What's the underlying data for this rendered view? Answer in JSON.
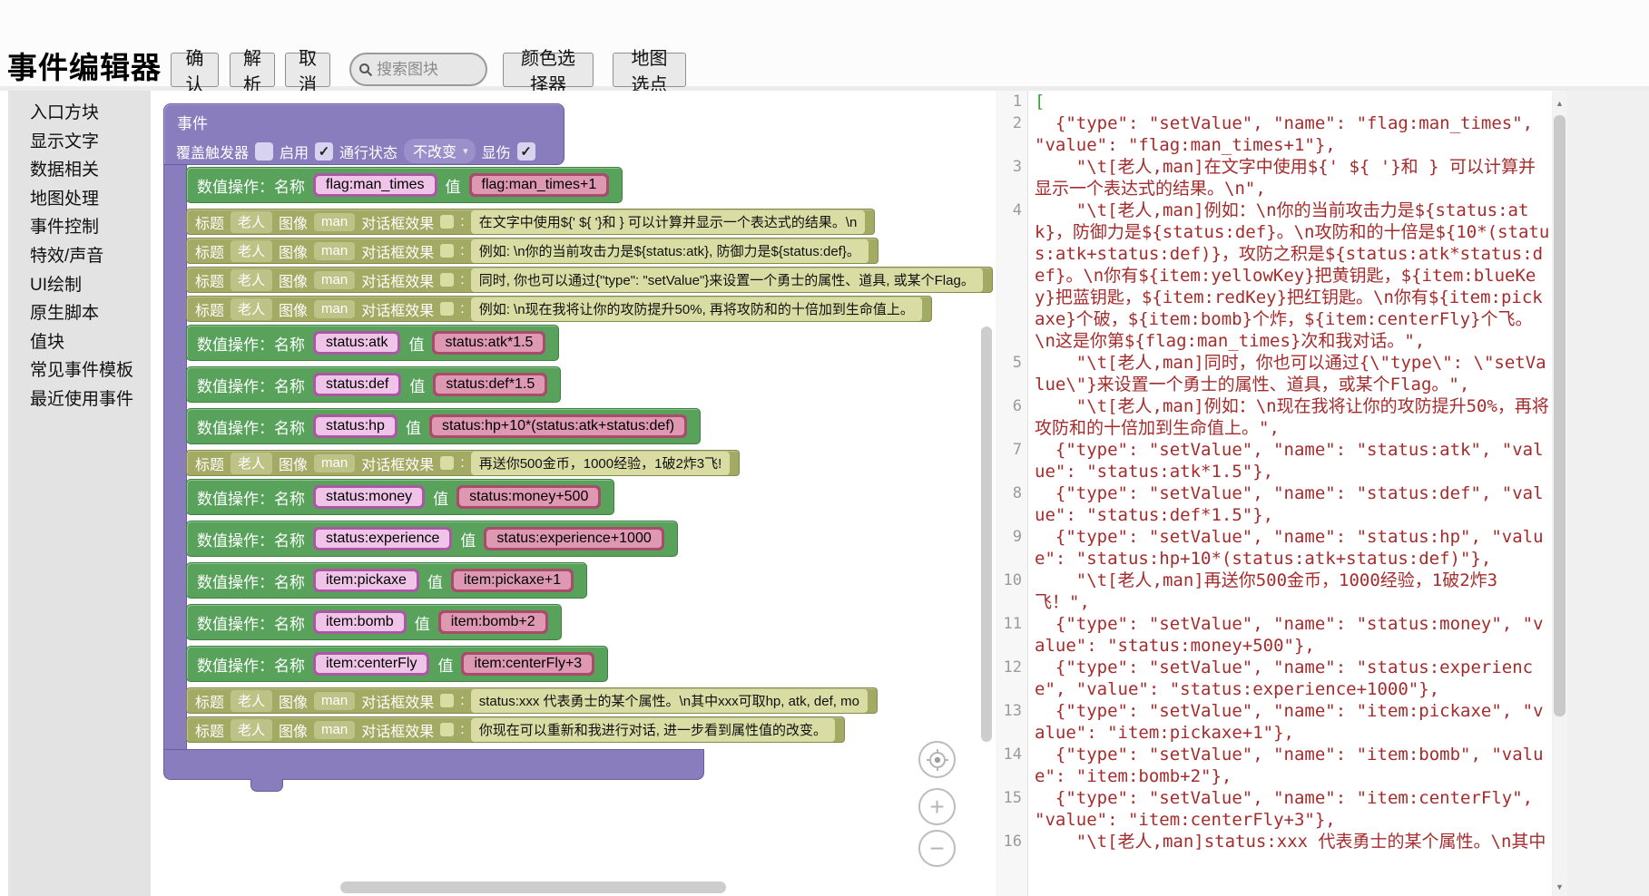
{
  "header": {
    "title": "事件编辑器",
    "buttons": [
      "确认",
      "解析",
      "取消"
    ],
    "search_placeholder": "搜索图块",
    "right_buttons": [
      "颜色选择器",
      "地图选点"
    ]
  },
  "sidebar": {
    "items": [
      "入口方块",
      "显示文字",
      "数据相关",
      "地图处理",
      "事件控制",
      "特效/声音",
      "UI绘制",
      "原生脚本",
      "值块",
      "常见事件模板",
      "最近使用事件"
    ]
  },
  "labels": {
    "op": "数值操作：名称",
    "value": "值",
    "title": "标题",
    "image": "图像",
    "effect": "对话框效果",
    "colon": ":"
  },
  "workspace": {
    "event_block": {
      "title": "事件",
      "settings": {
        "trigger_label": "覆盖触发器",
        "trigger_checked": false,
        "enable_label": "启用",
        "enable_checked": true,
        "pass_label": "通行状态",
        "pass_value": "不改变",
        "damage_label": "显伤",
        "damage_checked": true
      },
      "children": [
        {
          "kind": "setValue",
          "name": "flag:man_times",
          "value": "flag:man_times+1"
        },
        {
          "kind": "text",
          "title": "老人",
          "image": "man",
          "effect_checked": false,
          "text": "在文字中使用${' ${ '}和 } 可以计算并显示一个表达式的结果。\\n"
        },
        {
          "kind": "text",
          "title": "老人",
          "image": "man",
          "effect_checked": false,
          "text": "例如: \\n你的当前攻击力是${status:atk}, 防御力是${status:def}。"
        },
        {
          "kind": "text",
          "title": "老人",
          "image": "man",
          "effect_checked": false,
          "text": "同时, 你也可以通过{\"type\": \"setValue\"}来设置一个勇士的属性、道具, 或某个Flag。"
        },
        {
          "kind": "text",
          "title": "老人",
          "image": "man",
          "effect_checked": false,
          "text": "例如: \\n现在我将让你的攻防提升50%, 再将攻防和的十倍加到生命值上。"
        },
        {
          "kind": "setValue",
          "name": "status:atk",
          "value": "status:atk*1.5"
        },
        {
          "kind": "setValue",
          "name": "status:def",
          "value": "status:def*1.5"
        },
        {
          "kind": "setValue",
          "name": "status:hp",
          "value": "status:hp+10*(status:atk+status:def)"
        },
        {
          "kind": "text",
          "title": "老人",
          "image": "man",
          "effect_checked": false,
          "text": "再送你500金币，1000经验，1破2炸3飞!"
        },
        {
          "kind": "setValue",
          "name": "status:money",
          "value": "status:money+500"
        },
        {
          "kind": "setValue",
          "name": "status:experience",
          "value": "status:experience+1000"
        },
        {
          "kind": "setValue",
          "name": "item:pickaxe",
          "value": "item:pickaxe+1"
        },
        {
          "kind": "setValue",
          "name": "item:bomb",
          "value": "item:bomb+2"
        },
        {
          "kind": "setValue",
          "name": "item:centerFly",
          "value": "item:centerFly+3"
        },
        {
          "kind": "text",
          "title": "老人",
          "image": "man",
          "effect_checked": false,
          "text": "status:xxx 代表勇士的某个属性。\\n其中xxx可取hp, atk, def, mo"
        },
        {
          "kind": "text",
          "title": "老人",
          "image": "man",
          "effect_checked": false,
          "text": "你现在可以重新和我进行对话, 进一步看到属性值的改变。"
        }
      ]
    },
    "zoom_controls": {
      "locate": "locate",
      "zoom_in": "+",
      "zoom_out": "−"
    }
  },
  "code_panel": {
    "lines": [
      {
        "no": 1,
        "color": "green",
        "text": "["
      },
      {
        "no": 2,
        "text": "  {\"type\": \"setValue\", \"name\": \"flag:man_times\", \"value\": \"flag:man_times+1\"},"
      },
      {
        "no": 3,
        "text": "    \"\\t[老人,man]在文字中使用${' ${ '}和 } 可以计算并显示一个表达式的结果。\\n\","
      },
      {
        "no": 4,
        "text": "    \"\\t[老人,man]例如：\\n你的当前攻击力是${status:atk}，防御力是${status:def}。\\n攻防和的十倍是${10*(status:atk+status:def)}，攻防之积是${status:atk*status:def}。\\n你有${item:yellowKey}把黄钥匙，${item:blueKey}把蓝钥匙，${item:redKey}把红钥匙。\\n你有${item:pickaxe}个破，${item:bomb}个炸，${item:centerFly}个飞。\\n这是你第${flag:man_times}次和我对话。\","
      },
      {
        "no": 5,
        "text": "    \"\\t[老人,man]同时，你也可以通过{\\\"type\\\": \\\"setValue\\\"}来设置一个勇士的属性、道具，或某个Flag。\","
      },
      {
        "no": 6,
        "text": "    \"\\t[老人,man]例如：\\n现在我将让你的攻防提升50%，再将攻防和的十倍加到生命值上。\","
      },
      {
        "no": 7,
        "text": "  {\"type\": \"setValue\", \"name\": \"status:atk\", \"value\": \"status:atk*1.5\"},"
      },
      {
        "no": 8,
        "text": "  {\"type\": \"setValue\", \"name\": \"status:def\", \"value\": \"status:def*1.5\"},"
      },
      {
        "no": 9,
        "text": "  {\"type\": \"setValue\", \"name\": \"status:hp\", \"value\": \"status:hp+10*(status:atk+status:def)\"},"
      },
      {
        "no": 10,
        "text": "    \"\\t[老人,man]再送你500金币，1000经验，1破2炸3飞！\","
      },
      {
        "no": 11,
        "text": "  {\"type\": \"setValue\", \"name\": \"status:money\", \"value\": \"status:money+500\"},"
      },
      {
        "no": 12,
        "text": "  {\"type\": \"setValue\", \"name\": \"status:experience\", \"value\": \"status:experience+1000\"},"
      },
      {
        "no": 13,
        "text": "  {\"type\": \"setValue\", \"name\": \"item:pickaxe\", \"value\": \"item:pickaxe+1\"},"
      },
      {
        "no": 14,
        "text": "  {\"type\": \"setValue\", \"name\": \"item:bomb\", \"value\": \"item:bomb+2\"},"
      },
      {
        "no": 15,
        "text": "  {\"type\": \"setValue\", \"name\": \"item:centerFly\", \"value\": \"item:centerFly+3\"},"
      },
      {
        "no": 16,
        "text": "    \"\\t[老人,man]status:xxx 代表勇士的某个属性。\\n其中"
      }
    ]
  },
  "colors": {
    "event_block": "#8a7dbe",
    "set_value_block": "#58a25b",
    "name_field_frame": "#ab58a4",
    "name_field_fill": "#f0c4e9",
    "value_field_frame": "#aa4a6c",
    "value_field_fill": "#de98b1",
    "text_block": "#a3aa64",
    "text_field_fill": "#d9dda4",
    "code_text": "#a52c2c",
    "code_bracket": "#3aa33a"
  }
}
